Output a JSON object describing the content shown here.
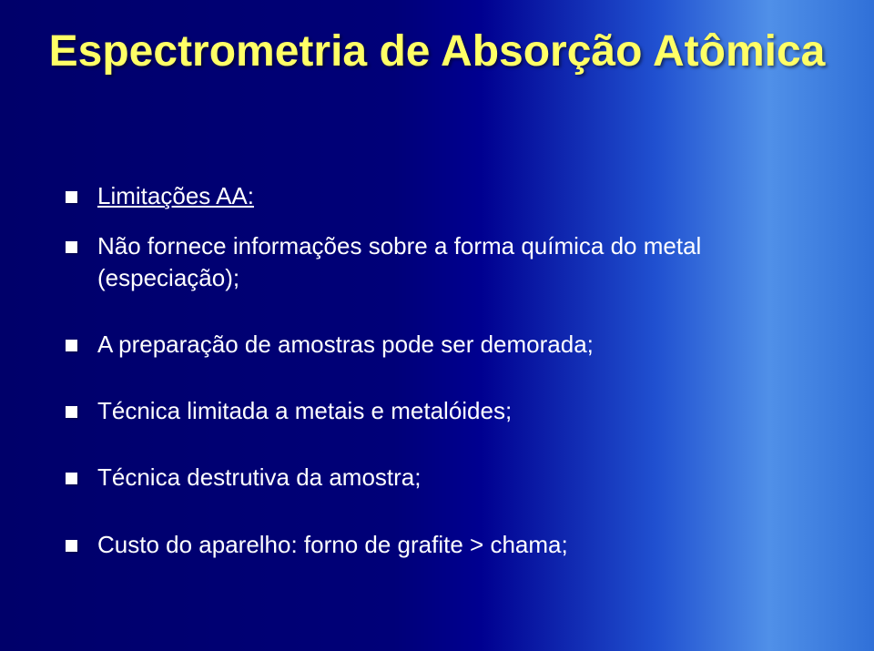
{
  "title": "Espectrometria de Absorção Atômica",
  "bullets": [
    {
      "text": "Limitações AA:",
      "underline": true
    },
    {
      "text": "Não fornece informações sobre a forma química do metal (especiação);",
      "underline": false
    },
    {
      "text": "A preparação de amostras pode ser demorada;",
      "underline": false
    },
    {
      "text": "Técnica limitada a metais e metalóides;",
      "underline": false
    },
    {
      "text": "Técnica destrutiva da amostra;",
      "underline": false
    },
    {
      "text": "Custo do aparelho: forno de grafite > chama;",
      "underline": false
    }
  ],
  "colors": {
    "title_color": "#ffff66",
    "text_color": "#ffffff",
    "bullet_color": "#ffffff"
  }
}
